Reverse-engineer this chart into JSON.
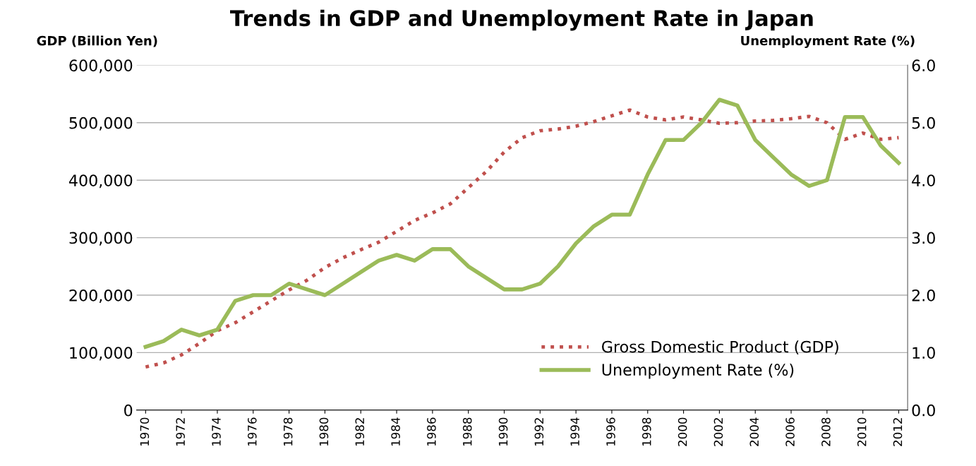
{
  "chart_data": {
    "type": "line",
    "title": "Trends in GDP and Unemployment Rate in Japan",
    "ylabel": "GDP (Billion Yen)",
    "y2label": "Unemployment Rate (%)",
    "x": [
      1970,
      1971,
      1972,
      1973,
      1974,
      1975,
      1976,
      1977,
      1978,
      1979,
      1980,
      1981,
      1982,
      1983,
      1984,
      1985,
      1986,
      1987,
      1988,
      1989,
      1990,
      1991,
      1992,
      1993,
      1994,
      1995,
      1996,
      1997,
      1998,
      1999,
      2000,
      2001,
      2002,
      2003,
      2004,
      2005,
      2006,
      2007,
      2008,
      2009,
      2010,
      2011,
      2012
    ],
    "xlim": [
      1969.5,
      2012.5
    ],
    "xticks": [
      1970,
      1972,
      1974,
      1976,
      1978,
      1980,
      1982,
      1984,
      1986,
      1988,
      1990,
      1992,
      1994,
      1996,
      1998,
      2000,
      2002,
      2004,
      2006,
      2008,
      2010,
      2012
    ],
    "ylim": [
      0,
      600000
    ],
    "yticks": [
      {
        "value": 0,
        "label": "0"
      },
      {
        "value": 100000,
        "label": "100,000"
      },
      {
        "value": 200000,
        "label": "200,000"
      },
      {
        "value": 300000,
        "label": "300,000"
      },
      {
        "value": 400000,
        "label": "400,000"
      },
      {
        "value": 500000,
        "label": "500,000"
      },
      {
        "value": 600000,
        "label": "600,000"
      }
    ],
    "y2lim": [
      0,
      6
    ],
    "y2ticks": [
      {
        "value": 0,
        "label": "0.0"
      },
      {
        "value": 1,
        "label": "1.0"
      },
      {
        "value": 2,
        "label": "2.0"
      },
      {
        "value": 3,
        "label": "3.0"
      },
      {
        "value": 4,
        "label": "4.0"
      },
      {
        "value": 5,
        "label": "5.0"
      },
      {
        "value": 6,
        "label": "6.0"
      }
    ],
    "grid": "y",
    "legend": "bottom right",
    "series": [
      {
        "name": "Gross Domestic Product (GDP)",
        "color": "#c0504d",
        "line_style": "dotted",
        "values": [
          75000,
          82000,
          96000,
          116000,
          138000,
          152000,
          171000,
          190000,
          209000,
          226000,
          248000,
          265000,
          279000,
          292000,
          311000,
          330000,
          343000,
          359000,
          387000,
          415000,
          449000,
          474000,
          486000,
          489000,
          494000,
          502000,
          512000,
          522000,
          510000,
          505000,
          510000,
          505000,
          499000,
          500000,
          503000,
          504000,
          507000,
          511000,
          500000,
          471000,
          482000,
          471000,
          474000
        ]
      },
      {
        "name": "Unemployment Rate (%)",
        "color": "#9bbb59",
        "line_style": "solid",
        "axis": "y2",
        "values": [
          1.1,
          1.2,
          1.4,
          1.3,
          1.4,
          1.9,
          2.0,
          2.0,
          2.2,
          2.1,
          2.0,
          2.2,
          2.4,
          2.6,
          2.7,
          2.6,
          2.8,
          2.8,
          2.5,
          2.3,
          2.1,
          2.1,
          2.2,
          2.5,
          2.9,
          3.2,
          3.4,
          3.4,
          4.1,
          4.7,
          4.7,
          5.0,
          5.4,
          5.3,
          4.7,
          4.4,
          4.1,
          3.9,
          4.0,
          5.1,
          5.1,
          4.6,
          4.3
        ]
      }
    ]
  }
}
